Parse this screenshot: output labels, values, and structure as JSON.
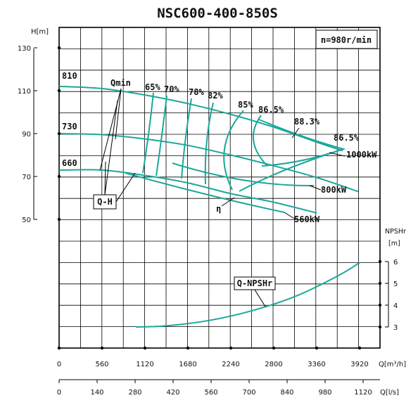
{
  "chart_data": {
    "type": "line",
    "title": "NSC600-400-850S",
    "speed_note": "n=980r/min",
    "x_axis_m3h": {
      "label": "Q[m³/h]",
      "ticks": [
        "0",
        "560",
        "1120",
        "1680",
        "2240",
        "2800",
        "3360",
        "3920"
      ]
    },
    "x_axis_ls": {
      "label": "Q[l/s]",
      "ticks": [
        "0",
        "140",
        "280",
        "420",
        "560",
        "700",
        "840",
        "980",
        "1120"
      ]
    },
    "y_axis_head": {
      "label": "H[m]",
      "ticks": [
        "130",
        "110",
        "90",
        "70",
        "50"
      ]
    },
    "y_axis_npsh": {
      "label_line1": "NPSHr",
      "label_line2": "[m]",
      "ticks": [
        "6",
        "5",
        "4",
        "3"
      ]
    },
    "impeller_labels": [
      "810",
      "730",
      "660"
    ],
    "efficiency_labels": [
      "65%",
      "70%",
      "78%",
      "82%",
      "85%",
      "86.5%",
      "88.3%",
      "86.5%"
    ],
    "power_labels": [
      "1000kW",
      "800kW",
      "560kW"
    ],
    "annotations": {
      "qmin": "Qmin",
      "qh": "Q-H",
      "eta": "η",
      "npsh": "Q-NPSHr"
    },
    "series": [
      {
        "name": "810",
        "x": [
          0,
          560,
          1120,
          1680,
          2240,
          2800,
          3360,
          3700
        ],
        "y": [
          112,
          111,
          108,
          104,
          99,
          93,
          86,
          82
        ]
      },
      {
        "name": "730",
        "x": [
          0,
          560,
          1120,
          1680,
          2240,
          2800,
          3360,
          3900
        ],
        "y": [
          90,
          89.5,
          87.5,
          84.5,
          80,
          75,
          69.5,
          63
        ]
      },
      {
        "name": "660",
        "x": [
          0,
          560,
          1120,
          1680,
          2240,
          2800,
          3360
        ],
        "y": [
          73,
          73,
          70.5,
          67,
          62,
          58,
          53
        ]
      },
      {
        "name": "Q-NPSHr",
        "x": [
          1000,
          1400,
          1960,
          2520,
          3080,
          3640,
          3920
        ],
        "y": [
          3,
          3.05,
          3.3,
          3.75,
          4.4,
          5.35,
          5.95
        ]
      }
    ],
    "grid": true,
    "xlim": [
      0,
      4200
    ],
    "ylim_head": [
      40,
      140
    ],
    "ylim_npsh": [
      2.3,
      7
    ]
  }
}
